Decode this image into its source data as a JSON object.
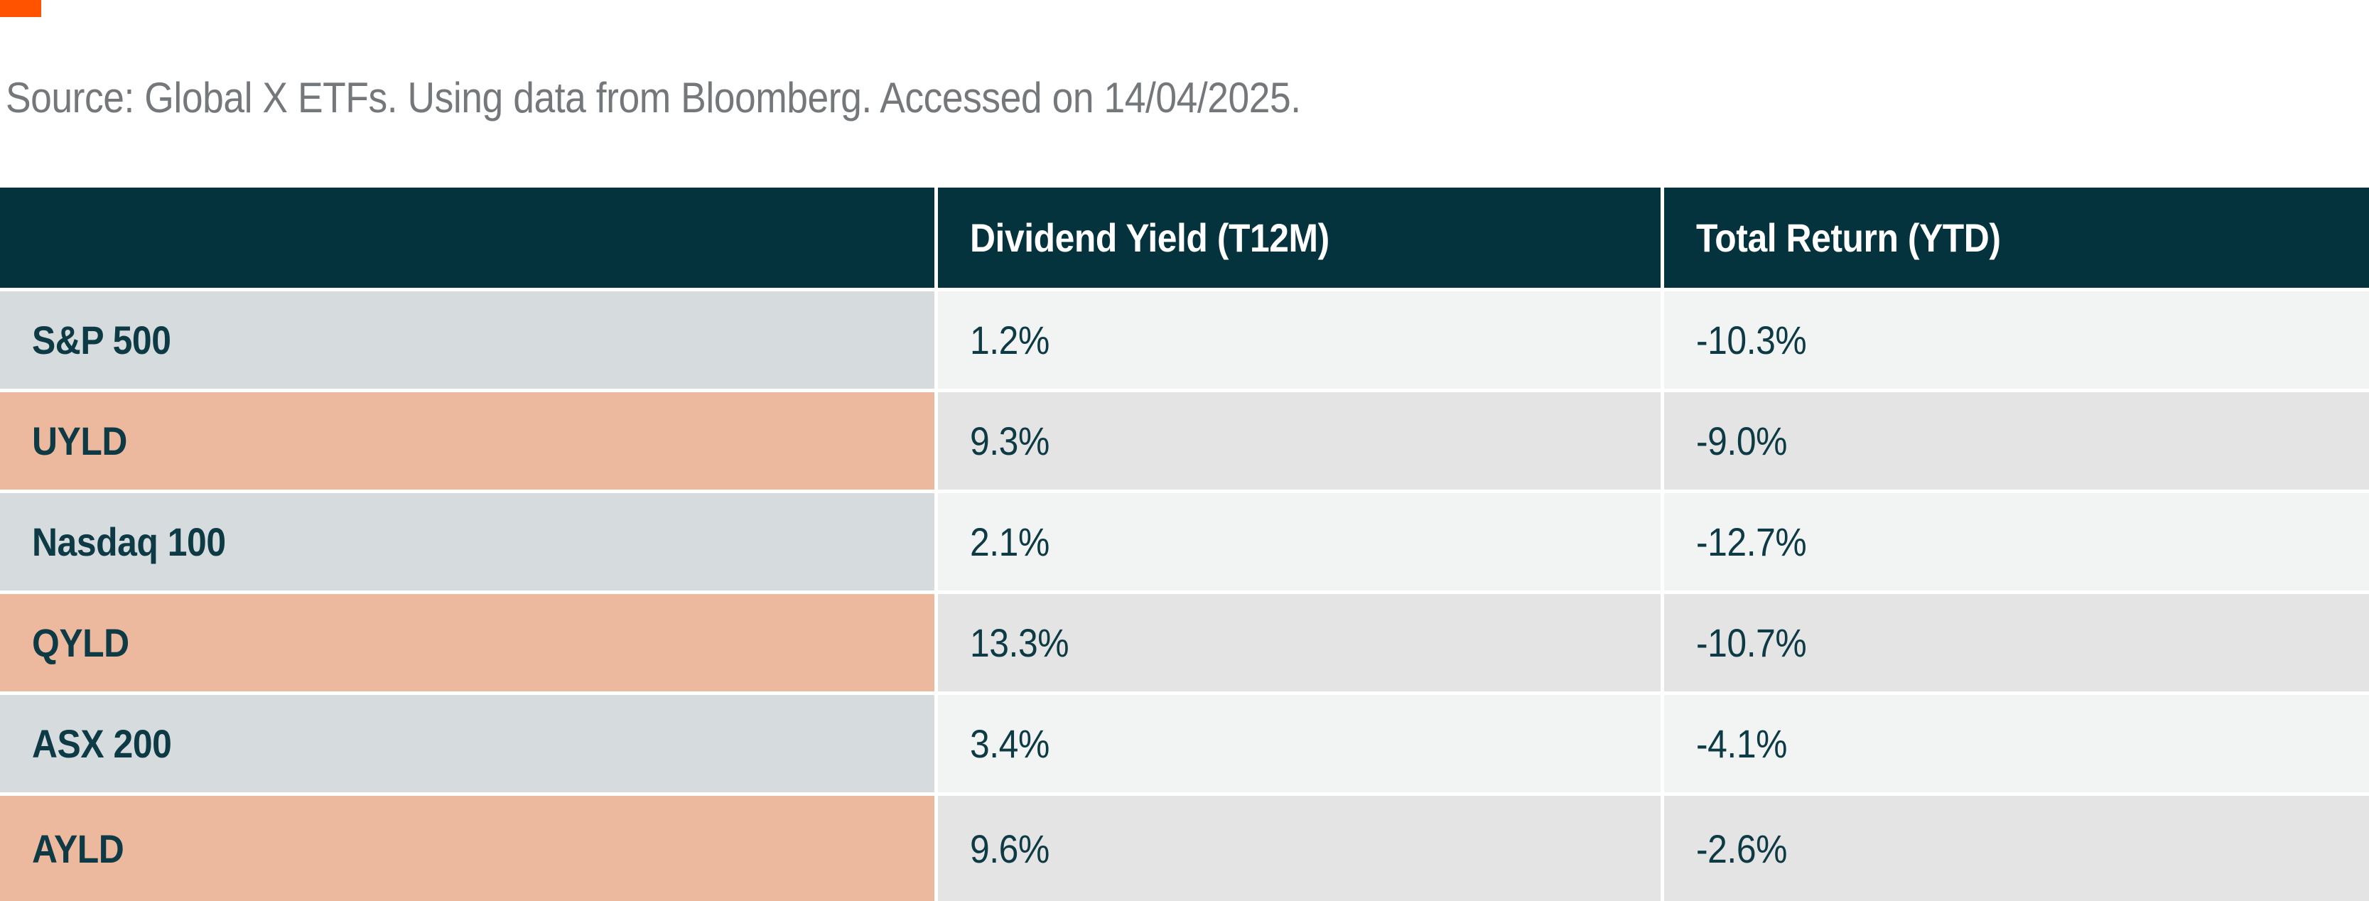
{
  "source_note": "Source: Global X ETFs. Using data from Bloomberg. Accessed on 14/04/2025.",
  "colors": {
    "orange": "#FF5300",
    "header_teal": "#04333D",
    "bluegray": "#D6DCDE",
    "salmon": "#EDB99E",
    "cell_light": "#F2F3F3",
    "cell_dark": "#E4E4E4",
    "text_teal": "#0D3A44",
    "gray_text": "#75787B"
  },
  "table": {
    "columns": {
      "label": "",
      "dividend_yield": "Dividend Yield (T12M)",
      "total_return": "Total Return (YTD)"
    },
    "rows": [
      {
        "label": "S&P 500",
        "dividend_yield": "1.2%",
        "total_return": "-10.3%"
      },
      {
        "label": "UYLD",
        "dividend_yield": "9.3%",
        "total_return": "-9.0%"
      },
      {
        "label": "Nasdaq 100",
        "dividend_yield": "2.1%",
        "total_return": "-12.7%"
      },
      {
        "label": "QYLD",
        "dividend_yield": "13.3%",
        "total_return": "-10.7%"
      },
      {
        "label": "ASX 200",
        "dividend_yield": "3.4%",
        "total_return": "-4.1%"
      },
      {
        "label": "AYLD",
        "dividend_yield": "9.6%",
        "total_return": "-2.6%"
      }
    ]
  },
  "chart_data": {
    "type": "table",
    "title": "",
    "categories": [
      "S&P 500",
      "UYLD",
      "Nasdaq 100",
      "QYLD",
      "ASX 200",
      "AYLD"
    ],
    "series": [
      {
        "name": "Dividend Yield (T12M)",
        "values": [
          1.2,
          9.3,
          2.1,
          13.3,
          3.4,
          9.6
        ]
      },
      {
        "name": "Total Return (YTD)",
        "values": [
          -10.3,
          -9.0,
          -12.7,
          -10.7,
          -4.1,
          -2.6
        ]
      }
    ],
    "units": "%"
  }
}
